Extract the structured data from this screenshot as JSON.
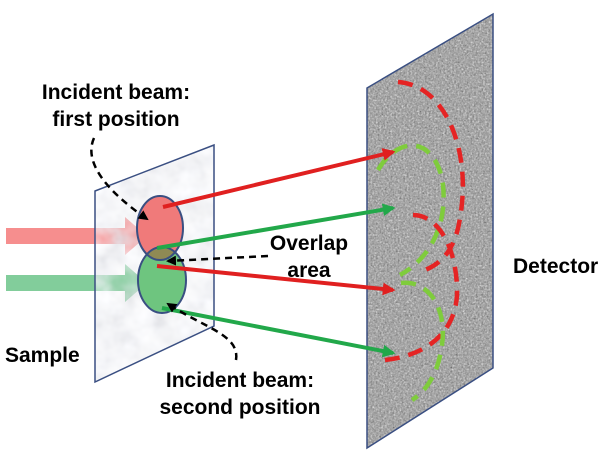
{
  "labels": {
    "first_line1": "Incident beam:",
    "first_line2": "first position",
    "overlap_line1": "Overlap",
    "overlap_line2": "area",
    "detector": "Detector",
    "sample": "Sample",
    "second_line1": "Incident beam:",
    "second_line2": "second position"
  },
  "colors": {
    "red_beam": "#e02020",
    "green_beam": "#22a84a",
    "red_incident": "#f47a7a",
    "green_incident": "#6cc489",
    "red_spot": "#f07a7a",
    "green_spot": "#6ec57f",
    "overlap_spot": "#8f8a54",
    "red_dashed": "#e52424",
    "green_dashed": "#7fcc3c",
    "plane_outline": "#3a4f82"
  }
}
